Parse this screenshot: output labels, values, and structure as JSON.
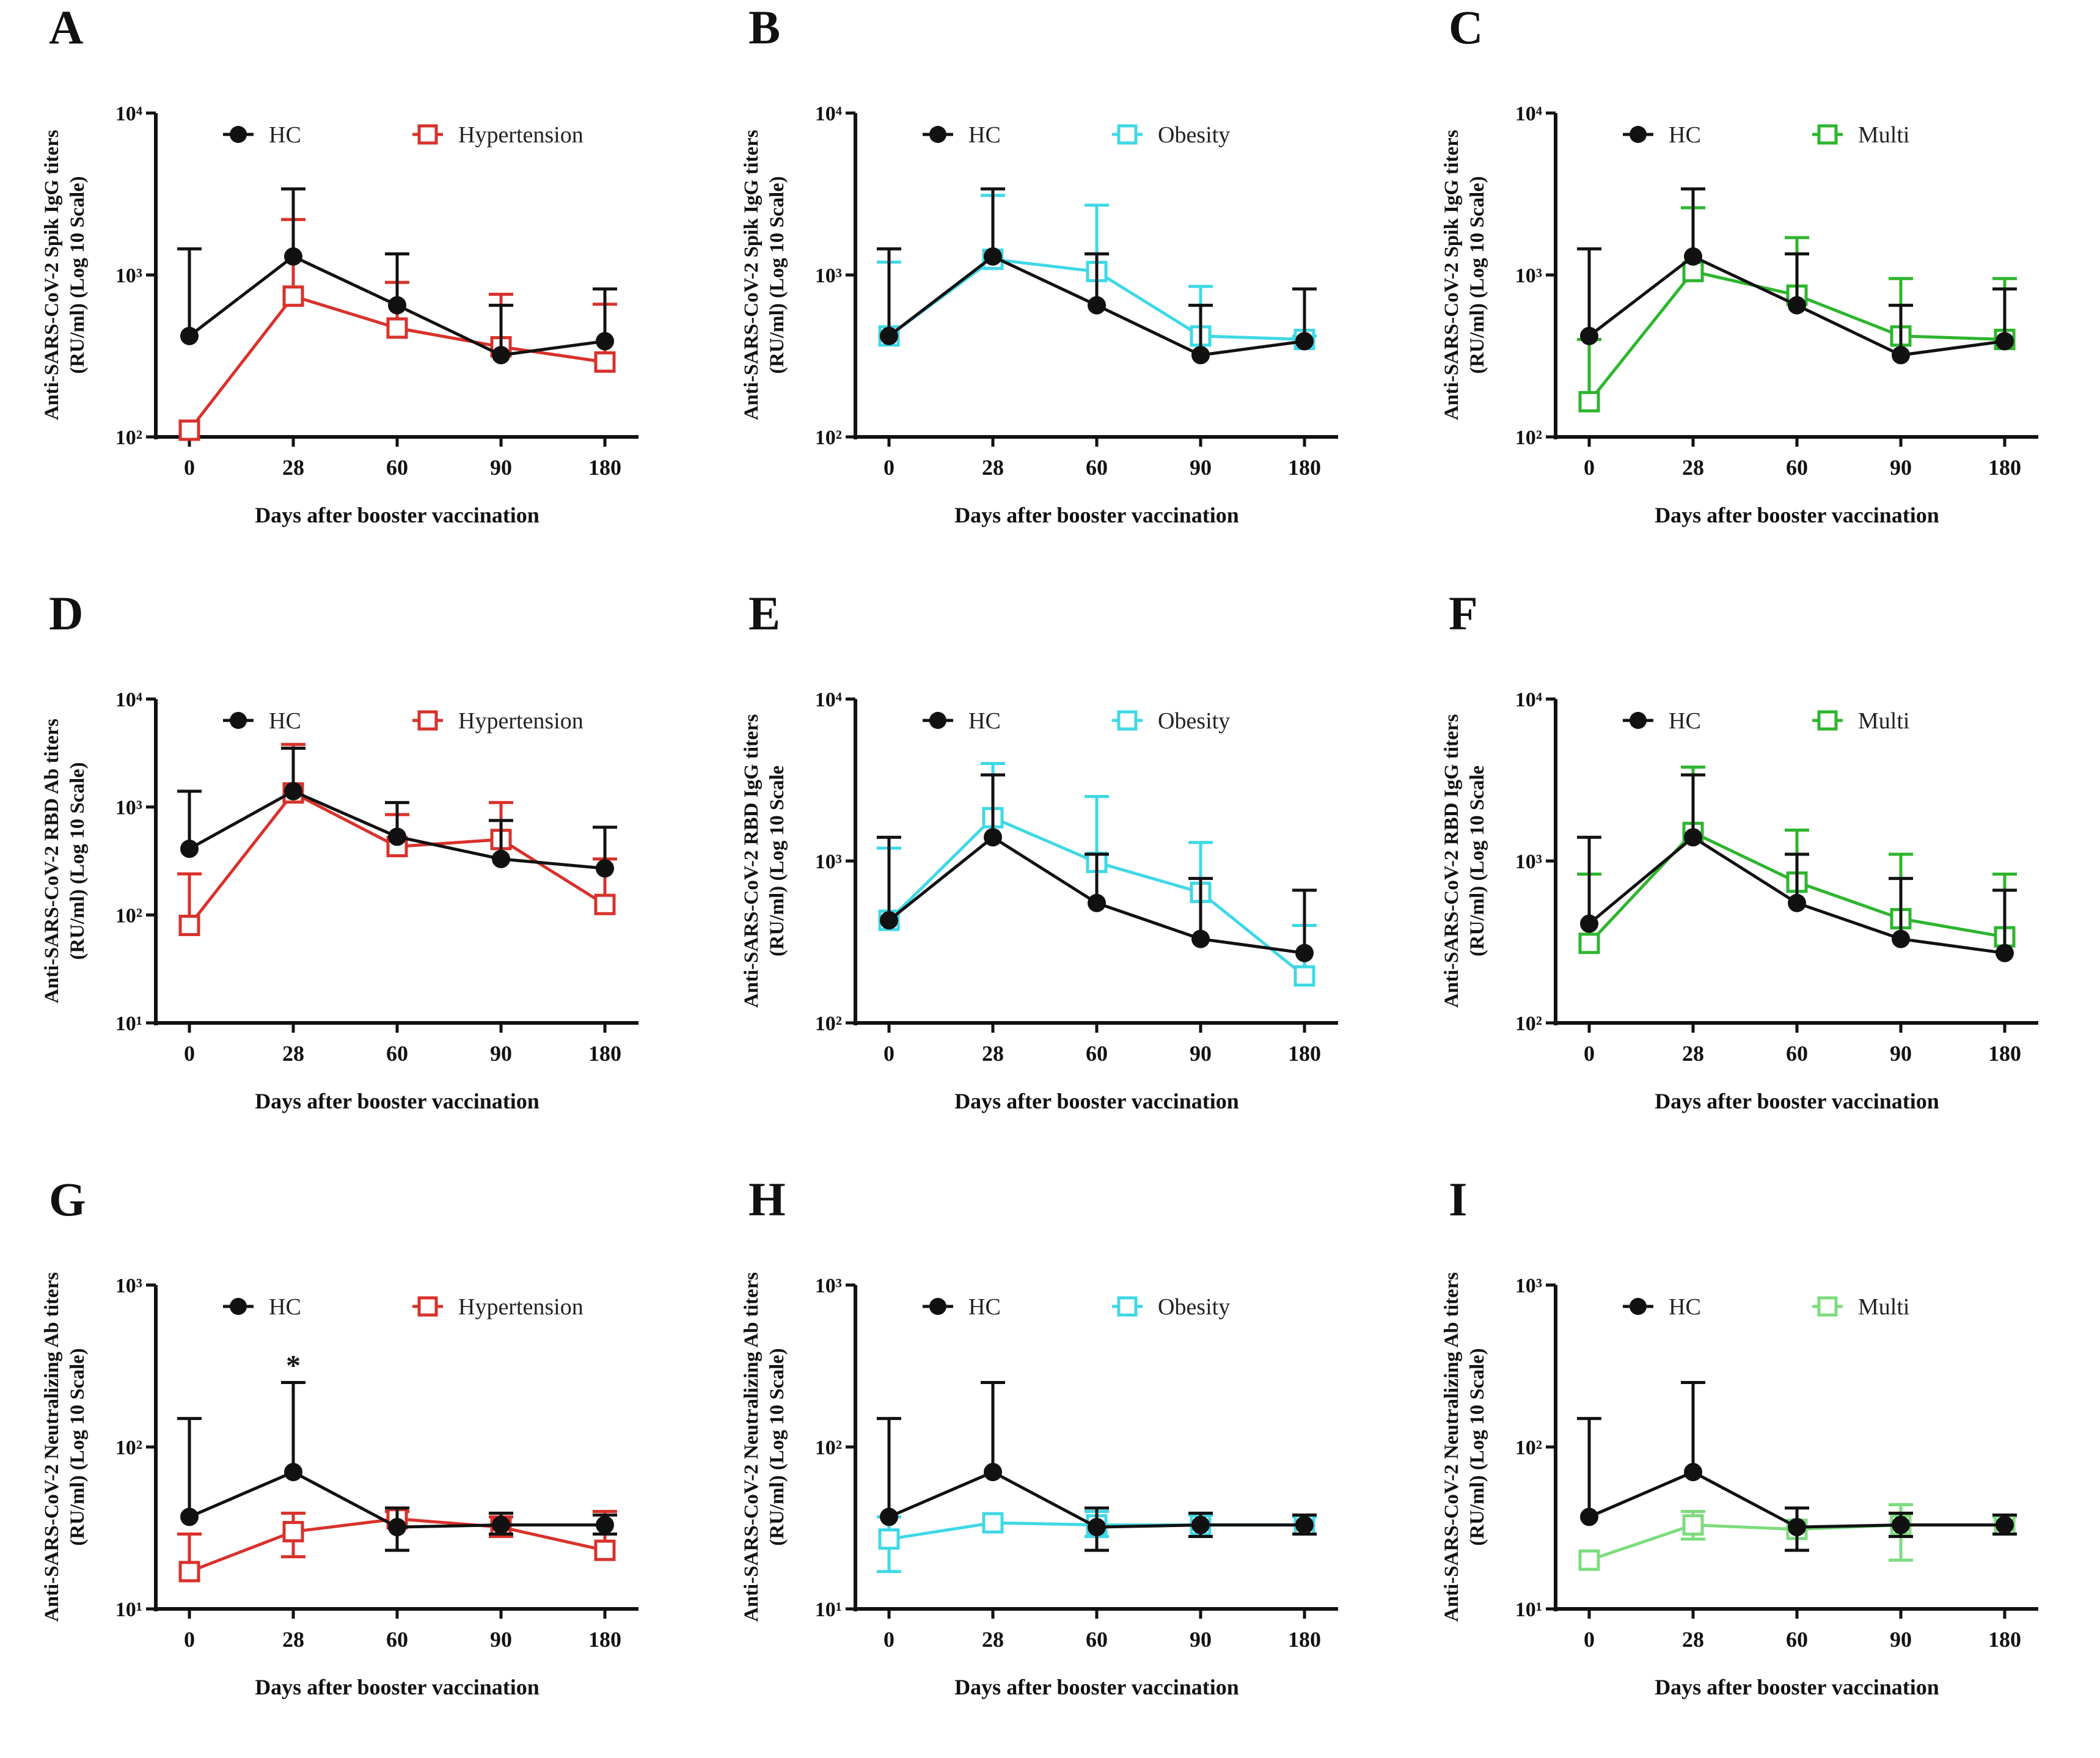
{
  "x_categories": [
    "0",
    "28",
    "60",
    "90",
    "180"
  ],
  "chart_data": [
    {
      "panel": "A",
      "type": "line",
      "ylabel": "Anti-SARS-CoV-2 Spik IgG titers (RU/ml) (Log 10 Scale)",
      "xlabel": "Days after booster vaccination",
      "yscale": "log",
      "ylim": [
        100,
        10000
      ],
      "yticks": [
        "10²",
        "10³",
        "10⁴"
      ],
      "ytick_values": [
        100,
        1000,
        10000
      ],
      "annotations": [],
      "series": [
        {
          "name": "HC",
          "marker": "filled-circle",
          "color": "#111111",
          "values": [
            420,
            1300,
            650,
            320,
            390
          ],
          "err_upper": [
            1450,
            3400,
            1350,
            650,
            820
          ],
          "err_lower": [
            null,
            null,
            null,
            null,
            null
          ]
        },
        {
          "name": "Hypertension",
          "marker": "open-square",
          "color": "#d9312b",
          "values": [
            110,
            740,
            470,
            360,
            290
          ],
          "err_upper": [
            null,
            2200,
            900,
            760,
            660
          ],
          "err_lower": [
            null,
            null,
            null,
            null,
            null
          ]
        }
      ]
    },
    {
      "panel": "B",
      "type": "line",
      "ylabel": "Anti-SARS-CoV-2 Spik IgG titers (RU/ml) (Log 10 Scale)",
      "xlabel": "Days after booster vaccination",
      "yscale": "log",
      "ylim": [
        100,
        10000
      ],
      "yticks": [
        "10²",
        "10³",
        "10⁴"
      ],
      "ytick_values": [
        100,
        1000,
        10000
      ],
      "annotations": [],
      "series": [
        {
          "name": "HC",
          "marker": "filled-circle",
          "color": "#111111",
          "values": [
            420,
            1300,
            650,
            320,
            390
          ],
          "err_upper": [
            1450,
            3400,
            1350,
            650,
            820
          ],
          "err_lower": [
            null,
            null,
            null,
            null,
            null
          ]
        },
        {
          "name": "Obesity",
          "marker": "open-square",
          "color": "#3fd8e6",
          "values": [
            420,
            1250,
            1050,
            420,
            400
          ],
          "err_upper": [
            1200,
            3100,
            2700,
            850,
            420
          ],
          "err_lower": [
            null,
            null,
            null,
            null,
            null
          ]
        }
      ]
    },
    {
      "panel": "C",
      "type": "line",
      "ylabel": "Anti-SARS-CoV-2 Spik IgG titers (RU/ml) (Log 10 Scale)",
      "xlabel": "Days after booster vaccination",
      "yscale": "log",
      "ylim": [
        100,
        10000
      ],
      "yticks": [
        "10²",
        "10³",
        "10⁴"
      ],
      "ytick_values": [
        100,
        1000,
        10000
      ],
      "annotations": [],
      "series": [
        {
          "name": "HC",
          "marker": "filled-circle",
          "color": "#111111",
          "values": [
            420,
            1300,
            650,
            320,
            390
          ],
          "err_upper": [
            1450,
            3400,
            1350,
            650,
            820
          ],
          "err_lower": [
            null,
            null,
            null,
            null,
            null
          ]
        },
        {
          "name": "Multi",
          "marker": "open-square",
          "color": "#2db52d",
          "values": [
            165,
            1050,
            750,
            420,
            400
          ],
          "err_upper": [
            400,
            2600,
            1700,
            950,
            950
          ],
          "err_lower": [
            null,
            null,
            null,
            null,
            null
          ]
        }
      ]
    },
    {
      "panel": "D",
      "type": "line",
      "ylabel": "Anti-SARS-CoV-2 RBD Ab titers (RU/ml) (Log 10 Scale)",
      "xlabel": "Days after booster vaccination",
      "yscale": "log",
      "ylim": [
        10,
        10000
      ],
      "yticks": [
        "10¹",
        "10²",
        "10³",
        "10⁴"
      ],
      "ytick_values": [
        10,
        100,
        1000,
        10000
      ],
      "annotations": [],
      "series": [
        {
          "name": "HC",
          "marker": "filled-circle",
          "color": "#111111",
          "values": [
            410,
            1400,
            530,
            330,
            270
          ],
          "err_upper": [
            1400,
            3500,
            1100,
            750,
            650
          ],
          "err_lower": [
            null,
            null,
            null,
            null,
            null
          ]
        },
        {
          "name": "Hypertension",
          "marker": "open-square",
          "color": "#d9312b",
          "values": [
            80,
            1350,
            430,
            500,
            125
          ],
          "err_upper": [
            240,
            3800,
            850,
            1100,
            330
          ],
          "err_lower": [
            null,
            null,
            null,
            null,
            null
          ]
        }
      ]
    },
    {
      "panel": "E",
      "type": "line",
      "ylabel": "Anti-SARS-CoV-2 RBD IgG titers (RU/ml) (Log 10 Scale",
      "xlabel": "Days after booster vaccination",
      "yscale": "log",
      "ylim": [
        100,
        10000
      ],
      "yticks": [
        "10²",
        "10³",
        "10⁴"
      ],
      "ytick_values": [
        100,
        1000,
        10000
      ],
      "annotations": [],
      "series": [
        {
          "name": "HC",
          "marker": "filled-circle",
          "color": "#111111",
          "values": [
            430,
            1400,
            550,
            330,
            270
          ],
          "err_upper": [
            1400,
            3400,
            1100,
            780,
            660
          ],
          "err_lower": [
            null,
            null,
            null,
            null,
            null
          ]
        },
        {
          "name": "Obesity",
          "marker": "open-square",
          "color": "#3fd8e6",
          "values": [
            430,
            1850,
            980,
            640,
            195
          ],
          "err_upper": [
            1200,
            4000,
            2500,
            1300,
            400
          ],
          "err_lower": [
            null,
            null,
            null,
            null,
            null
          ]
        }
      ]
    },
    {
      "panel": "F",
      "type": "line",
      "ylabel": "Anti-SARS-CoV-2 RBD IgG titers (RU/ml) (Log 10 Scale",
      "xlabel": "Days after booster vaccination",
      "yscale": "log",
      "ylim": [
        100,
        10000
      ],
      "yticks": [
        "10²",
        "10³",
        "10⁴"
      ],
      "ytick_values": [
        100,
        1000,
        10000
      ],
      "annotations": [],
      "series": [
        {
          "name": "HC",
          "marker": "filled-circle",
          "color": "#111111",
          "values": [
            410,
            1400,
            550,
            330,
            270
          ],
          "err_upper": [
            1400,
            3400,
            1100,
            780,
            660
          ],
          "err_lower": [
            null,
            null,
            null,
            null,
            null
          ]
        },
        {
          "name": "Multi",
          "marker": "open-square",
          "color": "#2db52d",
          "values": [
            310,
            1500,
            740,
            440,
            340
          ],
          "err_upper": [
            830,
            3800,
            1550,
            1100,
            830
          ],
          "err_lower": [
            null,
            null,
            null,
            null,
            null
          ]
        }
      ]
    },
    {
      "panel": "G",
      "type": "line",
      "ylabel": "Anti-SARS-CoV-2 Neutralizing Ab titers (RU/ml) (Log 10 Scale)",
      "xlabel": "Days after booster vaccination",
      "yscale": "log",
      "ylim": [
        10,
        1000
      ],
      "yticks": [
        "10¹",
        "10²",
        "10³"
      ],
      "ytick_values": [
        10,
        100,
        1000
      ],
      "annotations": [
        {
          "text": "*",
          "x": "28",
          "y": 330
        }
      ],
      "series": [
        {
          "name": "HC",
          "marker": "filled-circle",
          "color": "#111111",
          "values": [
            37,
            70,
            32,
            33,
            33
          ],
          "err_upper": [
            150,
            250,
            42,
            39,
            38
          ],
          "err_lower": [
            null,
            null,
            23,
            29,
            29
          ]
        },
        {
          "name": "Hypertension",
          "marker": "open-square",
          "color": "#d9312b",
          "values": [
            17,
            30,
            36,
            32,
            23
          ],
          "err_upper": [
            29,
            39,
            40,
            37,
            40
          ],
          "err_lower": [
            null,
            21,
            null,
            28,
            null
          ]
        }
      ]
    },
    {
      "panel": "H",
      "type": "line",
      "ylabel": "Anti-SARS-CoV-2 Neutralizing Ab titers (RU/ml) (Log 10 Scale)",
      "xlabel": "Days after booster vaccination",
      "yscale": "log",
      "ylim": [
        10,
        1000
      ],
      "yticks": [
        "10¹",
        "10²",
        "10³"
      ],
      "ytick_values": [
        10,
        100,
        1000
      ],
      "annotations": [],
      "series": [
        {
          "name": "HC",
          "marker": "filled-circle",
          "color": "#111111",
          "values": [
            37,
            70,
            32,
            33,
            33
          ],
          "err_upper": [
            150,
            250,
            42,
            39,
            38
          ],
          "err_lower": [
            null,
            null,
            23,
            28,
            29
          ]
        },
        {
          "name": "Obesity",
          "marker": "open-square",
          "color": "#3fd8e6",
          "values": [
            27,
            34,
            33,
            33,
            33
          ],
          "err_upper": [
            37,
            null,
            40,
            38,
            37
          ],
          "err_lower": [
            17,
            null,
            28,
            28,
            29
          ]
        }
      ]
    },
    {
      "panel": "I",
      "type": "line",
      "ylabel": "Anti-SARS-CoV-2 Neutralizing Ab titers (RU/ml) (Log 10 Scale)",
      "xlabel": "Days after booster vaccination",
      "yscale": "log",
      "ylim": [
        10,
        1000
      ],
      "yticks": [
        "10¹",
        "10²",
        "10³"
      ],
      "ytick_values": [
        10,
        100,
        1000
      ],
      "annotations": [],
      "series": [
        {
          "name": "HC",
          "marker": "filled-circle",
          "color": "#111111",
          "values": [
            37,
            70,
            32,
            33,
            33
          ],
          "err_upper": [
            150,
            250,
            42,
            39,
            38
          ],
          "err_lower": [
            null,
            null,
            23,
            28,
            29
          ]
        },
        {
          "name": "Multi",
          "marker": "open-square",
          "color": "#7ddc7d",
          "values": [
            20,
            33,
            31,
            33,
            33
          ],
          "err_upper": [
            null,
            40,
            null,
            44,
            37
          ],
          "err_lower": [
            null,
            27,
            null,
            20,
            29
          ]
        }
      ]
    }
  ]
}
